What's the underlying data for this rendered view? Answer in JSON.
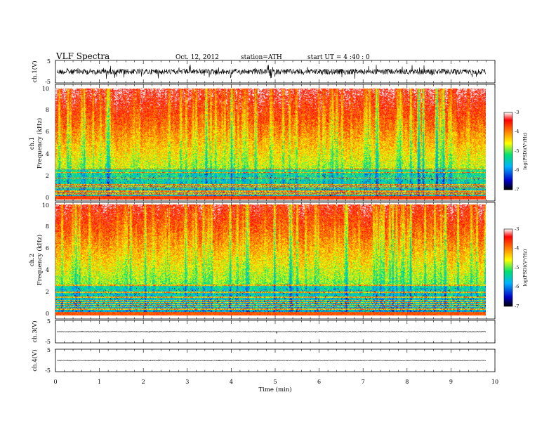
{
  "header": {
    "title": "VLF  Spectra",
    "date": "Oct. 12, 2012",
    "station": "station=ATH",
    "start": "start  UT  =   4  :40 : 0"
  },
  "chart_data": {
    "type": "heatmap",
    "x_axis": {
      "label": "Time  (min)",
      "range": [
        0,
        10
      ],
      "ticks": [
        "0",
        "1",
        "2",
        "3",
        "4",
        "5",
        "6",
        "7",
        "8",
        "9",
        "10"
      ],
      "data_end": 9.8
    },
    "panels": [
      {
        "kind": "waveform",
        "ylabel": "ch.1(V)",
        "ylim": [
          -5,
          5
        ],
        "ytick_labels": [
          "5",
          "-5"
        ],
        "amplitude": "high"
      },
      {
        "kind": "spectrogram",
        "ylabel_top": "ch.1",
        "ylabel_bottom": "Frequency  (kHz)",
        "ylim": [
          0,
          10
        ],
        "ytick_labels": [
          "0",
          "2",
          "4",
          "6",
          "8",
          "10"
        ],
        "colorbar": {
          "label": "log(PSD)(V²/Hz)",
          "range": [
            -7,
            -3
          ],
          "tick_labels": [
            "-7",
            "-6",
            "-5",
            "-4",
            "-3"
          ]
        }
      },
      {
        "kind": "spectrogram",
        "ylabel_top": "ch.2",
        "ylabel_bottom": "Frequency  (kHz)",
        "ylim": [
          0,
          10
        ],
        "ytick_labels": [
          "0",
          "2",
          "4",
          "6",
          "8",
          "10"
        ],
        "colorbar": {
          "label": "log(PSD)(V²/Hz)",
          "range": [
            -7,
            -3
          ],
          "tick_labels": [
            "-7",
            "-6",
            "-5",
            "-4",
            "-3"
          ]
        }
      },
      {
        "kind": "waveform",
        "ylabel": "ch.3(V)",
        "ylim": [
          -5,
          5
        ],
        "ytick_labels": [
          "5",
          "-5"
        ],
        "amplitude": "low"
      },
      {
        "kind": "waveform",
        "ylabel": "ch.4(V)",
        "ylim": [
          -5,
          5
        ],
        "ytick_labels": [
          "5",
          "-5"
        ],
        "amplitude": "low"
      }
    ],
    "colormap": [
      "#000000",
      "#0000c8",
      "#00b4ff",
      "#00e070",
      "#ffff00",
      "#ff8000",
      "#ff0000",
      "#ffffff"
    ]
  }
}
